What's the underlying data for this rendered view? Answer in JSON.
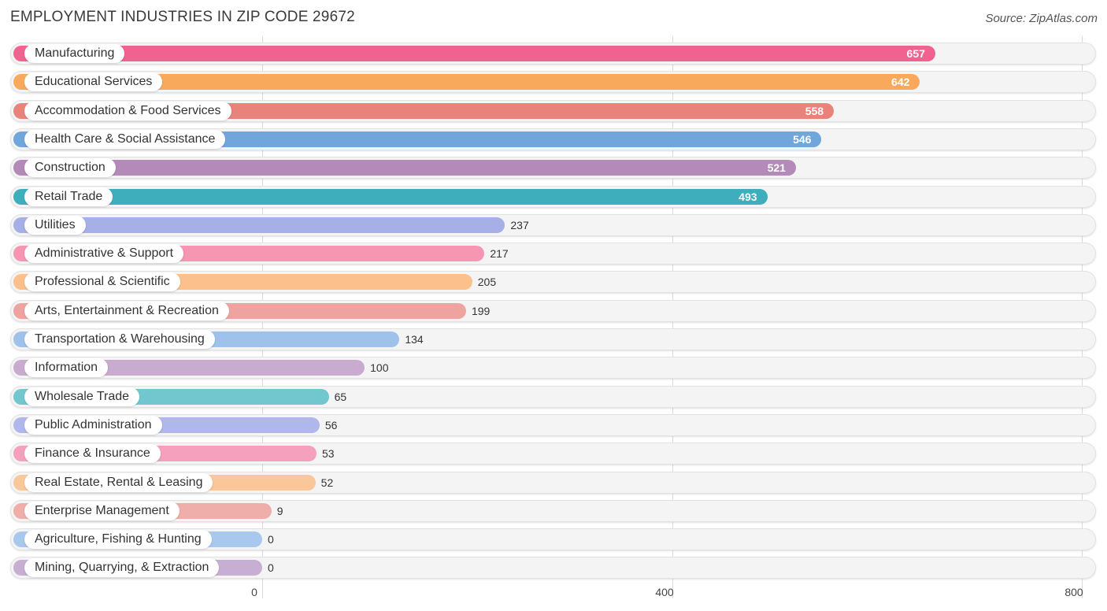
{
  "header": {
    "title": "EMPLOYMENT INDUSTRIES IN ZIP CODE 29672",
    "source": "Source: ZipAtlas.com"
  },
  "chart_data": {
    "type": "bar",
    "orientation": "horizontal",
    "title": "EMPLOYMENT INDUSTRIES IN ZIP CODE 29672",
    "xlabel": "",
    "ylabel": "",
    "xlim": [
      0,
      800
    ],
    "ticks": [
      0,
      400,
      800
    ],
    "tick_labels": [
      "0",
      "400",
      "800"
    ],
    "grid": true,
    "categories": [
      "Manufacturing",
      "Educational Services",
      "Accommodation & Food Services",
      "Health Care & Social Assistance",
      "Construction",
      "Retail Trade",
      "Utilities",
      "Administrative & Support",
      "Professional & Scientific",
      "Arts, Entertainment & Recreation",
      "Transportation & Warehousing",
      "Information",
      "Wholesale Trade",
      "Public Administration",
      "Finance & Insurance",
      "Real Estate, Rental & Leasing",
      "Enterprise Management",
      "Agriculture, Fishing & Hunting",
      "Mining, Quarrying, & Extraction"
    ],
    "values": [
      657,
      642,
      558,
      546,
      521,
      493,
      237,
      217,
      205,
      199,
      134,
      100,
      65,
      56,
      53,
      52,
      9,
      0,
      0
    ],
    "value_labels": [
      "657",
      "642",
      "558",
      "546",
      "521",
      "493",
      "237",
      "217",
      "205",
      "199",
      "134",
      "100",
      "65",
      "56",
      "53",
      "52",
      "9",
      "0",
      "0"
    ],
    "colors": [
      "#f0628f",
      "#f8a95c",
      "#e9837a",
      "#6fa6dc",
      "#b48ab9",
      "#3eaebd",
      "#a6b0e7",
      "#f796b2",
      "#fbc08b",
      "#eea3a1",
      "#9fc2ea",
      "#c9abd0",
      "#72c7cf",
      "#b0b7ea",
      "#f5a0bc",
      "#fac79a",
      "#f0aeaa",
      "#a9c8ee",
      "#c7aed3"
    ]
  }
}
